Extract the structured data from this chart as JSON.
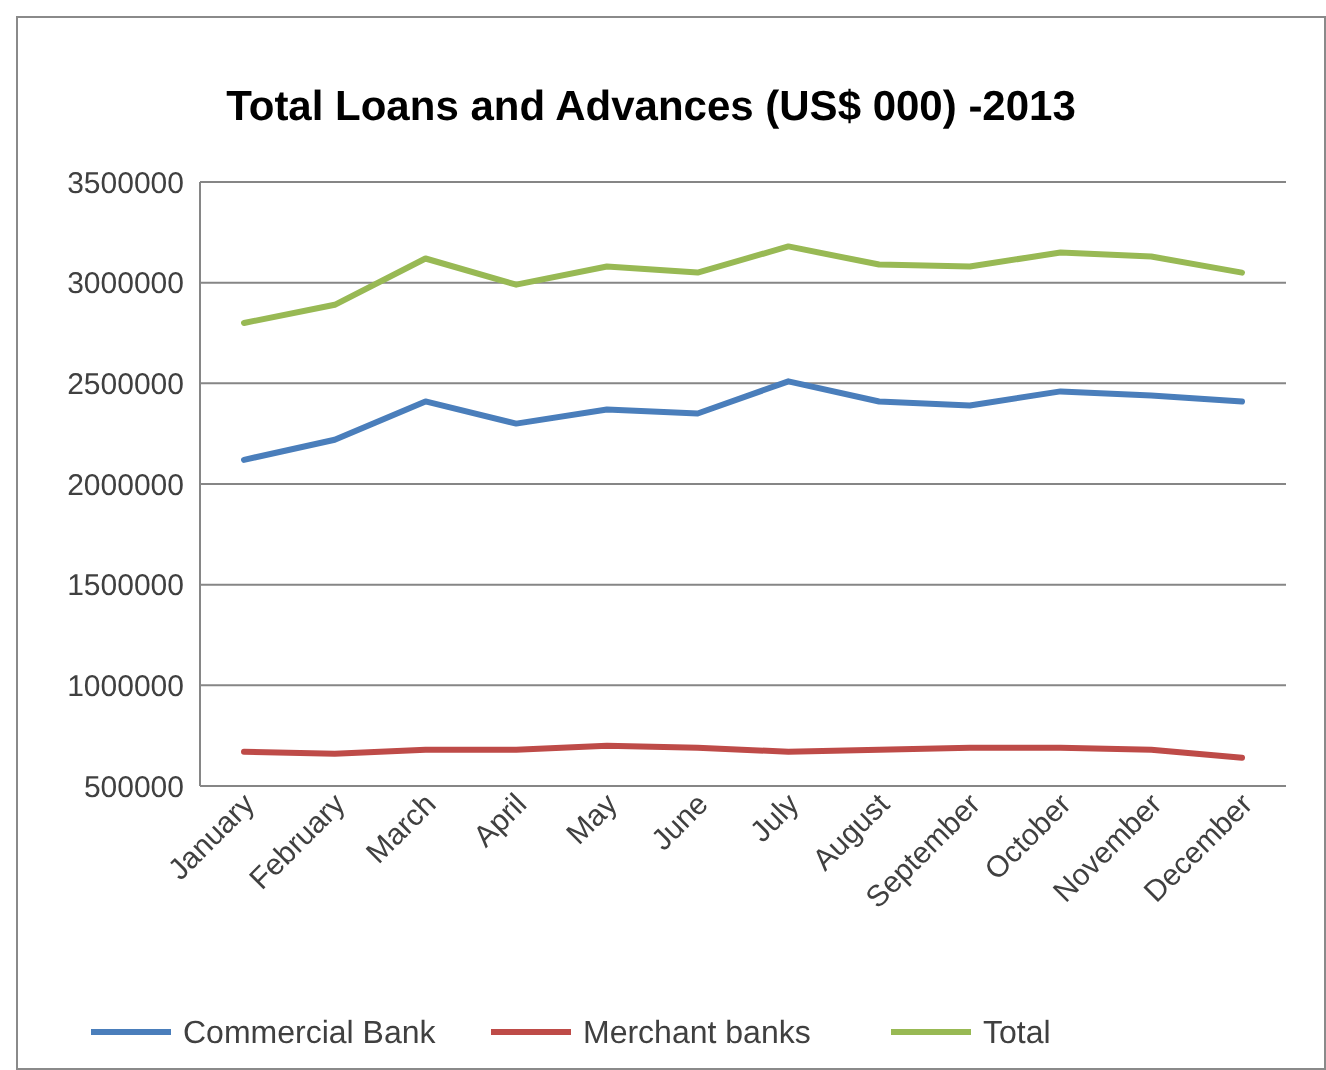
{
  "chart_data": {
    "type": "line",
    "title": "Total Loans and Advances (US$ 000) -2013",
    "categories": [
      "January",
      "February",
      "March",
      "April",
      "May",
      "June",
      "July",
      "August",
      "September",
      "October",
      "November",
      "December"
    ],
    "series": [
      {
        "name": "Commercial Bank",
        "color": "#4a7ebb",
        "values": [
          2120000,
          2220000,
          2410000,
          2300000,
          2370000,
          2350000,
          2510000,
          2410000,
          2390000,
          2460000,
          2440000,
          2410000
        ]
      },
      {
        "name": "Merchant banks",
        "color": "#be4b48",
        "values": [
          670000,
          660000,
          680000,
          680000,
          700000,
          690000,
          670000,
          680000,
          690000,
          690000,
          680000,
          640000
        ]
      },
      {
        "name": "Total",
        "color": "#98b954",
        "values": [
          2800000,
          2890000,
          3120000,
          2990000,
          3080000,
          3050000,
          3180000,
          3090000,
          3080000,
          3150000,
          3130000,
          3050000
        ]
      }
    ],
    "ylim": [
      500000,
      3500000
    ],
    "yticks": [
      500000,
      1000000,
      1500000,
      2000000,
      2500000,
      3000000,
      3500000
    ],
    "grid": "y",
    "legend": "bottom",
    "marker": "none",
    "line_style": "solid"
  }
}
